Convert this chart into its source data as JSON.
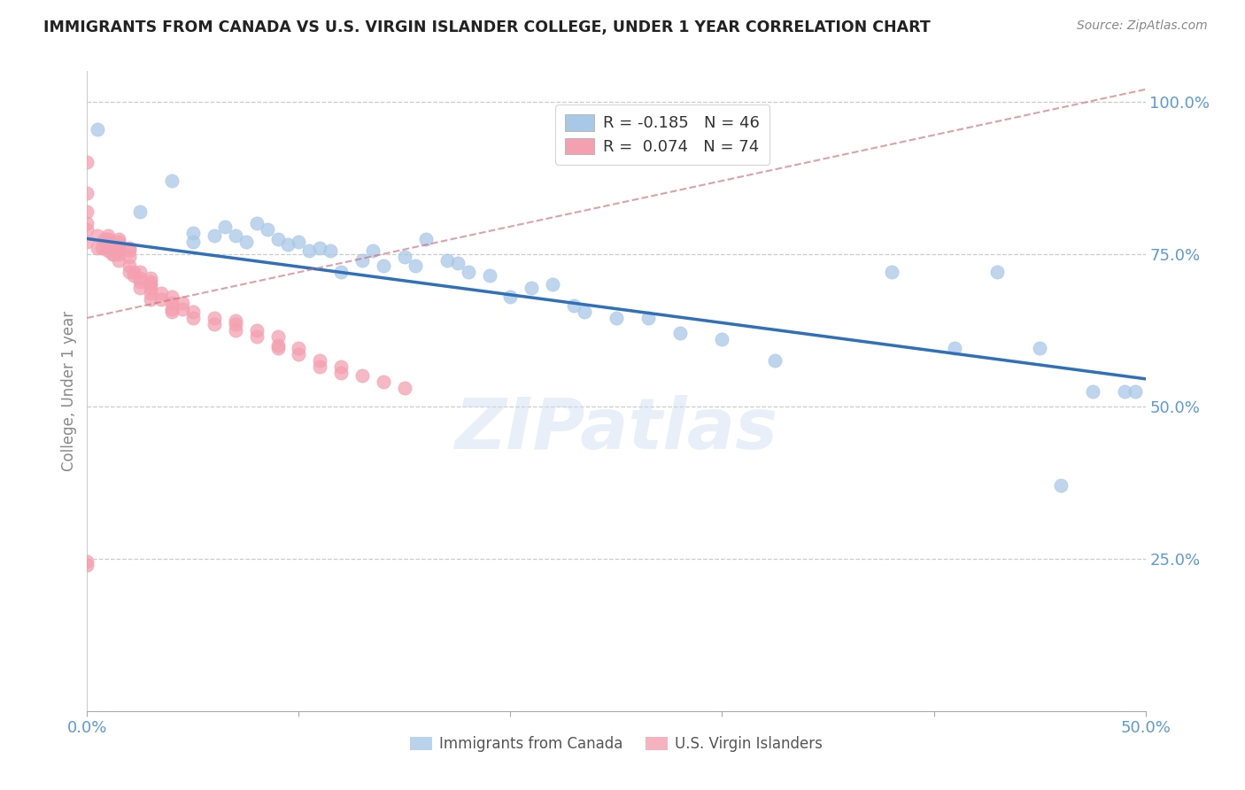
{
  "title": "IMMIGRANTS FROM CANADA VS U.S. VIRGIN ISLANDER COLLEGE, UNDER 1 YEAR CORRELATION CHART",
  "source": "Source: ZipAtlas.com",
  "ylabel": "College, Under 1 year",
  "xlim": [
    0.0,
    0.5
  ],
  "ylim": [
    0.0,
    1.05
  ],
  "xtick_positions": [
    0.0,
    0.1,
    0.2,
    0.3,
    0.4,
    0.5
  ],
  "xtick_labels": [
    "0.0%",
    "",
    "",
    "",
    "",
    "50.0%"
  ],
  "ytick_labels_right": [
    "25.0%",
    "50.0%",
    "75.0%",
    "100.0%"
  ],
  "ytick_positions_right": [
    0.25,
    0.5,
    0.75,
    1.0
  ],
  "legend_r1": "R = -0.185",
  "legend_n1": "N = 46",
  "legend_r2": "R =  0.074",
  "legend_n2": "N = 74",
  "color_blue": "#a8c8e8",
  "color_pink": "#f4a0b0",
  "color_blue_line": "#3070b8",
  "color_pink_line": "#c87080",
  "watermark": "ZIPatlas",
  "blue_line_x0": 0.0,
  "blue_line_x1": 0.5,
  "blue_line_y0": 0.775,
  "blue_line_y1": 0.545,
  "pink_line_x0": 0.0,
  "pink_line_x1": 0.5,
  "pink_line_y0": 0.645,
  "pink_line_y1": 1.02,
  "blue_scatter_x": [
    0.005,
    0.025,
    0.04,
    0.05,
    0.05,
    0.06,
    0.065,
    0.07,
    0.075,
    0.08,
    0.085,
    0.09,
    0.095,
    0.1,
    0.105,
    0.11,
    0.115,
    0.12,
    0.13,
    0.135,
    0.14,
    0.15,
    0.155,
    0.16,
    0.17,
    0.175,
    0.18,
    0.19,
    0.2,
    0.21,
    0.22,
    0.23,
    0.235,
    0.25,
    0.265,
    0.28,
    0.3,
    0.325,
    0.38,
    0.41,
    0.43,
    0.45,
    0.46,
    0.475,
    0.49,
    0.495
  ],
  "blue_scatter_y": [
    0.955,
    0.82,
    0.87,
    0.77,
    0.785,
    0.78,
    0.795,
    0.78,
    0.77,
    0.8,
    0.79,
    0.775,
    0.765,
    0.77,
    0.755,
    0.76,
    0.755,
    0.72,
    0.74,
    0.755,
    0.73,
    0.745,
    0.73,
    0.775,
    0.74,
    0.735,
    0.72,
    0.715,
    0.68,
    0.695,
    0.7,
    0.665,
    0.655,
    0.645,
    0.645,
    0.62,
    0.61,
    0.575,
    0.72,
    0.595,
    0.72,
    0.595,
    0.37,
    0.525,
    0.525,
    0.525
  ],
  "pink_scatter_x": [
    0.0,
    0.0,
    0.0,
    0.0,
    0.0,
    0.0,
    0.005,
    0.005,
    0.007,
    0.008,
    0.008,
    0.01,
    0.01,
    0.01,
    0.01,
    0.01,
    0.012,
    0.012,
    0.013,
    0.015,
    0.015,
    0.015,
    0.015,
    0.015,
    0.015,
    0.015,
    0.02,
    0.02,
    0.02,
    0.02,
    0.02,
    0.022,
    0.022,
    0.025,
    0.025,
    0.025,
    0.025,
    0.03,
    0.03,
    0.03,
    0.03,
    0.03,
    0.03,
    0.035,
    0.035,
    0.04,
    0.04,
    0.04,
    0.04,
    0.045,
    0.045,
    0.05,
    0.05,
    0.06,
    0.06,
    0.07,
    0.07,
    0.07,
    0.08,
    0.08,
    0.09,
    0.09,
    0.09,
    0.1,
    0.1,
    0.11,
    0.11,
    0.12,
    0.12,
    0.13,
    0.14,
    0.15,
    0.0,
    0.0
  ],
  "pink_scatter_y": [
    0.9,
    0.85,
    0.82,
    0.8,
    0.79,
    0.77,
    0.78,
    0.76,
    0.76,
    0.775,
    0.76,
    0.78,
    0.775,
    0.77,
    0.76,
    0.755,
    0.76,
    0.75,
    0.75,
    0.775,
    0.77,
    0.765,
    0.76,
    0.755,
    0.75,
    0.74,
    0.76,
    0.755,
    0.745,
    0.73,
    0.72,
    0.72,
    0.715,
    0.72,
    0.71,
    0.705,
    0.695,
    0.71,
    0.705,
    0.7,
    0.695,
    0.685,
    0.675,
    0.685,
    0.675,
    0.68,
    0.67,
    0.66,
    0.655,
    0.67,
    0.66,
    0.655,
    0.645,
    0.645,
    0.635,
    0.64,
    0.635,
    0.625,
    0.625,
    0.615,
    0.615,
    0.6,
    0.595,
    0.595,
    0.585,
    0.575,
    0.565,
    0.565,
    0.555,
    0.55,
    0.54,
    0.53,
    0.245,
    0.24
  ]
}
